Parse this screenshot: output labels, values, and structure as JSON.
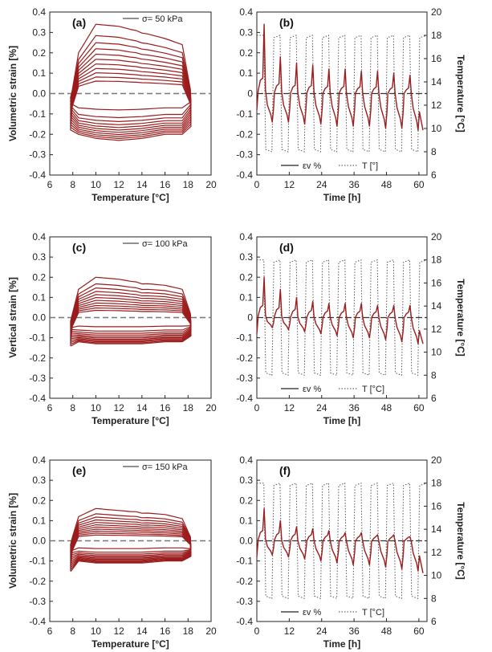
{
  "figure": {
    "colors": {
      "strain": "#9b1c1c",
      "temperature": "#555555",
      "axis": "#222222",
      "zero_line": "#777777"
    }
  },
  "chart_data": [
    {
      "id": "a",
      "type": "line",
      "panel_label": "(a)",
      "xlabel": "Temperature  [°C]",
      "ylabel": "Volumetric strain [%]",
      "xlim": [
        6,
        20
      ],
      "ylim": [
        -0.4,
        0.4
      ],
      "xticks": [
        "6",
        "8",
        "10",
        "12",
        "14",
        "16",
        "18",
        "20"
      ],
      "yticks": [
        "-0.4",
        "-0.3",
        "-0.2",
        "-0.1",
        "0.0",
        "0.1",
        "0.2",
        "0.3",
        "0.4"
      ],
      "legend": "σ= 50 kPa",
      "legend_position": "top-right",
      "zero_line": "dashed",
      "cycles": 11,
      "t_min": 7.8,
      "t_max": 18.2,
      "series": [
        {
          "x": [
            7.8,
            8.5,
            10,
            12,
            14,
            16,
            17.5,
            18.2,
            16,
            14,
            12,
            10,
            8.5,
            7.8
          ],
          "y": [
            -0.18,
            0.2,
            0.34,
            0.33,
            0.3,
            0.27,
            0.24,
            -0.05,
            -0.2,
            -0.22,
            -0.23,
            -0.22,
            -0.2,
            -0.18
          ]
        }
      ]
    },
    {
      "id": "b",
      "type": "line",
      "panel_label": "(b)",
      "xlabel": "Time [h]",
      "ylabel": "",
      "ylabel_right": "Temperature [°C]",
      "xlim": [
        0,
        63
      ],
      "ylim": [
        -0.4,
        0.4
      ],
      "ylim_right": [
        6,
        20
      ],
      "xticks": [
        "0",
        "12",
        "24",
        "36",
        "48",
        "60"
      ],
      "yticks": [
        "-0.4",
        "-0.3",
        "-0.2",
        "-0.1",
        "0",
        "0.1",
        "0.2",
        "0.3",
        "0.4"
      ],
      "yticks_right": [
        "6",
        "8",
        "10",
        "12",
        "14",
        "16",
        "18",
        "20"
      ],
      "legend_series": [
        "εv %",
        "T [°]"
      ],
      "legend_position": "bottom-center",
      "series": [
        {
          "name": "εv %",
          "peak_values": [
            0.34,
            0.18,
            0.15,
            0.14,
            0.12,
            0.12,
            0.11,
            0.11,
            0.1,
            0.09
          ],
          "trough_values": [
            -0.14,
            -0.14,
            -0.15,
            -0.15,
            -0.16,
            -0.16,
            -0.16,
            -0.17,
            -0.17,
            -0.18
          ],
          "end_value": -0.18
        },
        {
          "name": "T [°]",
          "high": 18,
          "low": 8,
          "period_h": 6.0,
          "cycles": 10
        }
      ]
    },
    {
      "id": "c",
      "type": "line",
      "panel_label": "(c)",
      "xlabel": "Temperature  [°C]",
      "ylabel": "Vertical strain  [%]",
      "xlim": [
        6,
        20
      ],
      "ylim": [
        -0.4,
        0.4
      ],
      "xticks": [
        "6",
        "8",
        "10",
        "12",
        "14",
        "16",
        "18",
        "20"
      ],
      "yticks": [
        "-0.4",
        "-0.3",
        "-0.2",
        "-0.1",
        "0.0",
        "0.1",
        "0.2",
        "0.3",
        "0.4"
      ],
      "legend": "σ= 100 kPa",
      "legend_position": "top-right",
      "zero_line": "dashed",
      "cycles": 11,
      "t_min": 7.8,
      "t_max": 18.2,
      "series": [
        {
          "x": [
            7.8,
            8.5,
            10,
            12,
            14,
            16,
            17.5,
            18.2,
            16,
            14,
            12,
            10,
            8.5,
            7.8
          ],
          "y": [
            -0.14,
            0.14,
            0.2,
            0.19,
            0.17,
            0.16,
            0.14,
            -0.03,
            -0.12,
            -0.13,
            -0.13,
            -0.13,
            -0.12,
            -0.14
          ]
        }
      ]
    },
    {
      "id": "d",
      "type": "line",
      "panel_label": "(d)",
      "xlabel": "Time [h]",
      "ylabel": "",
      "ylabel_right": "Temperature [°C]",
      "xlim": [
        0,
        63
      ],
      "ylim": [
        -0.4,
        0.4
      ],
      "ylim_right": [
        6,
        20
      ],
      "xticks": [
        "0",
        "12",
        "24",
        "36",
        "48",
        "60"
      ],
      "yticks": [
        "-0.4",
        "-0.3",
        "-0.2",
        "-0.1",
        "0",
        "0.1",
        "0.2",
        "0.3",
        "0.4"
      ],
      "yticks_right": [
        "6",
        "8",
        "10",
        "12",
        "14",
        "16",
        "18",
        "20"
      ],
      "legend_series": [
        "εv %",
        "T [°C]"
      ],
      "legend_position": "bottom-center",
      "series": [
        {
          "name": "εv %",
          "peak_values": [
            0.2,
            0.14,
            0.1,
            0.08,
            0.07,
            0.07,
            0.07,
            0.06,
            0.06,
            0.06
          ],
          "trough_values": [
            -0.05,
            -0.06,
            -0.07,
            -0.08,
            -0.09,
            -0.1,
            -0.1,
            -0.11,
            -0.12,
            -0.13
          ],
          "end_value": -0.13
        },
        {
          "name": "T [°C]",
          "high": 18,
          "low": 8,
          "period_h": 6.0,
          "cycles": 10
        }
      ]
    },
    {
      "id": "e",
      "type": "line",
      "panel_label": "(e)",
      "xlabel": "Temperature  [°C]",
      "ylabel": "Volumetric  strain  [%]",
      "xlim": [
        6,
        20
      ],
      "ylim": [
        -0.4,
        0.4
      ],
      "xticks": [
        "6",
        "8",
        "10",
        "12",
        "14",
        "16",
        "18",
        "20"
      ],
      "yticks": [
        "-0.4",
        "-0.3",
        "-0.2",
        "-0.1",
        "0.0",
        "0.1",
        "0.2",
        "0.3",
        "0.4"
      ],
      "legend": "σ= 150 kPa",
      "legend_position": "top-right",
      "zero_line": "dashed",
      "cycles": 11,
      "t_min": 7.8,
      "t_max": 18.2,
      "series": [
        {
          "x": [
            7.8,
            8.5,
            10,
            12,
            14,
            16,
            17.5,
            18.2,
            16,
            14,
            12,
            10,
            8.5,
            7.8
          ],
          "y": [
            -0.15,
            0.12,
            0.16,
            0.15,
            0.14,
            0.13,
            0.11,
            -0.02,
            -0.1,
            -0.11,
            -0.11,
            -0.11,
            -0.1,
            -0.15
          ]
        }
      ]
    },
    {
      "id": "f",
      "type": "line",
      "panel_label": "(f)",
      "xlabel": "Time [h]",
      "ylabel": "",
      "ylabel_right": "Temperature [°C]",
      "xlim": [
        0,
        63
      ],
      "ylim": [
        -0.4,
        0.4
      ],
      "ylim_right": [
        6,
        20
      ],
      "xticks": [
        "0",
        "12",
        "24",
        "36",
        "48",
        "60"
      ],
      "yticks": [
        "-0.4",
        "-0.3",
        "-0.2",
        "-0.1",
        "0.0",
        "0.1",
        "0.2",
        "0.3",
        "0.4"
      ],
      "yticks_right": [
        "6",
        "8",
        "10",
        "12",
        "14",
        "16",
        "18",
        "20"
      ],
      "legend_series": [
        "εv %",
        "T [°C]"
      ],
      "legend_position": "bottom-center",
      "series": [
        {
          "name": "εv %",
          "peak_values": [
            0.16,
            0.1,
            0.07,
            0.06,
            0.05,
            0.04,
            0.04,
            0.03,
            0.03,
            0.02
          ],
          "trough_values": [
            -0.07,
            -0.08,
            -0.09,
            -0.1,
            -0.11,
            -0.12,
            -0.12,
            -0.13,
            -0.14,
            -0.15
          ],
          "end_value": -0.16
        },
        {
          "name": "T [°C]",
          "high": 18,
          "low": 8,
          "period_h": 6.0,
          "cycles": 10
        }
      ]
    }
  ]
}
